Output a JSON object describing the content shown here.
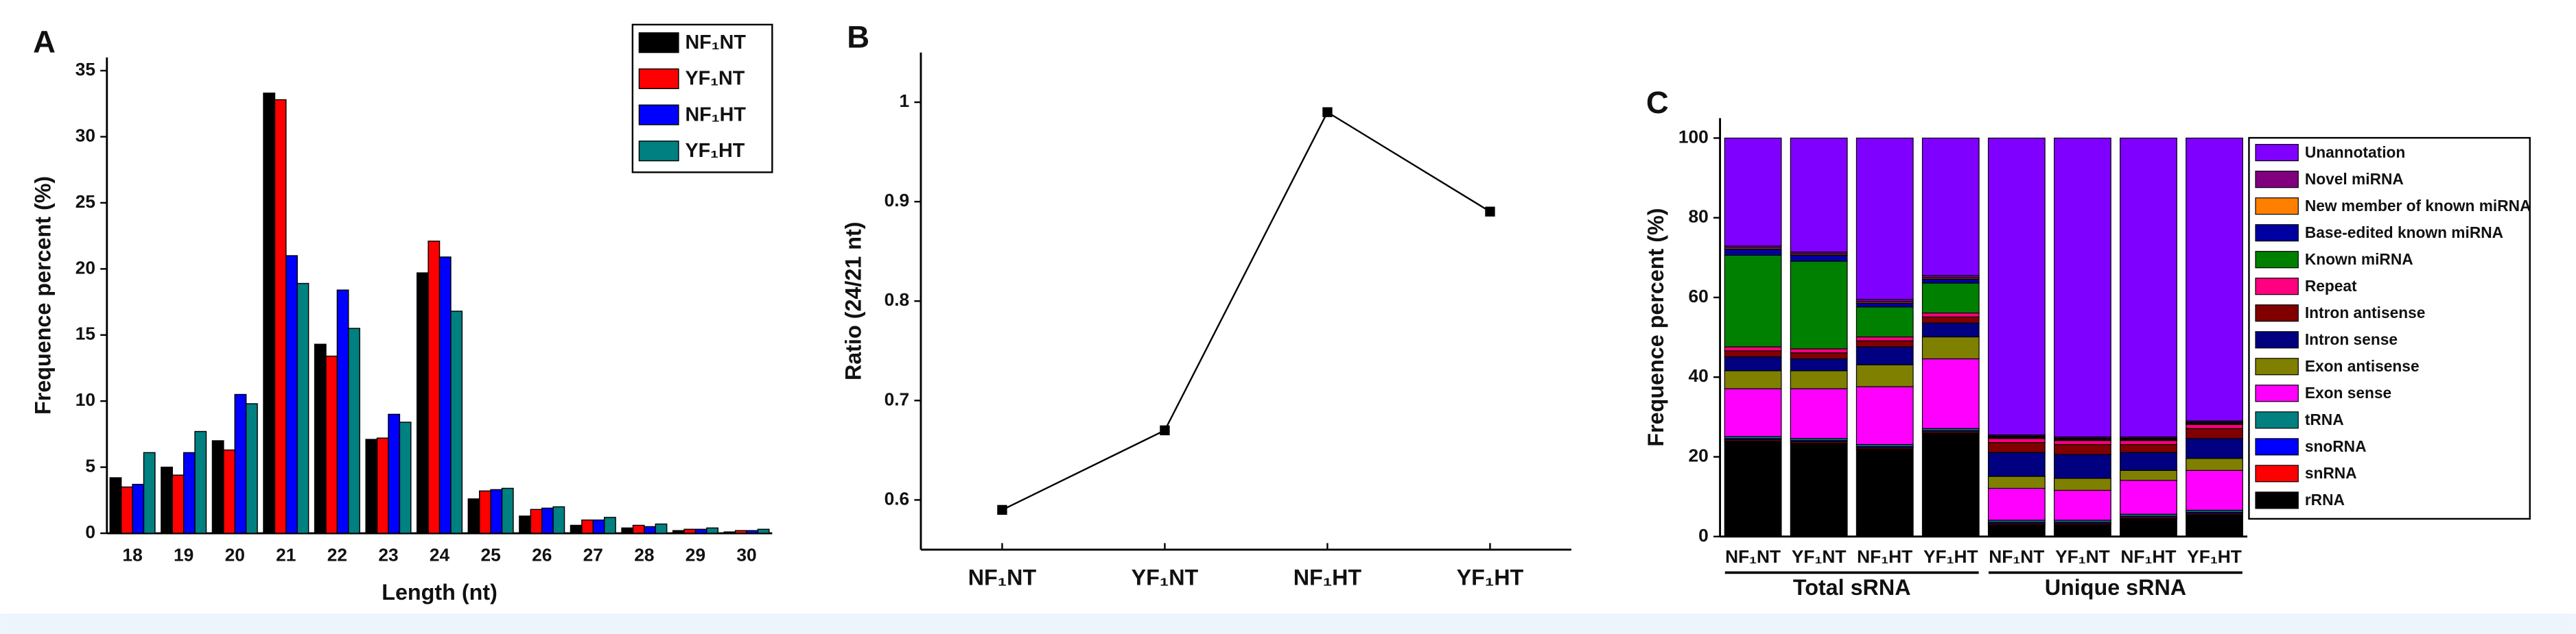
{
  "chart_data": [
    {
      "type": "bar",
      "panel": "A",
      "xlabel": "Length (nt)",
      "ylabel": "Frequence percent (%)",
      "categories": [
        "18",
        "19",
        "20",
        "21",
        "22",
        "23",
        "24",
        "25",
        "26",
        "27",
        "28",
        "29",
        "30"
      ],
      "series": [
        {
          "name": "NF₁NT",
          "color": "#000000",
          "values": [
            4.2,
            5.0,
            7.0,
            33.3,
            14.3,
            7.1,
            19.7,
            2.6,
            1.3,
            0.6,
            0.4,
            0.2,
            0.1
          ]
        },
        {
          "name": "YF₁NT",
          "color": "#ff0000",
          "values": [
            3.5,
            4.4,
            6.3,
            32.8,
            13.4,
            7.2,
            22.1,
            3.2,
            1.8,
            1.0,
            0.6,
            0.3,
            0.2
          ]
        },
        {
          "name": "NF₁HT",
          "color": "#0000ff",
          "values": [
            3.7,
            6.1,
            10.5,
            21.0,
            18.4,
            9.0,
            20.9,
            3.3,
            1.9,
            1.0,
            0.5,
            0.3,
            0.2
          ]
        },
        {
          "name": "YF₁HT",
          "color": "#008080",
          "values": [
            6.1,
            7.7,
            9.8,
            18.9,
            15.5,
            8.4,
            16.8,
            3.4,
            2.0,
            1.2,
            0.7,
            0.4,
            0.3
          ]
        }
      ],
      "ylim": [
        0,
        36
      ],
      "yticks": [
        0,
        5,
        10,
        15,
        20,
        25,
        30,
        35
      ],
      "legend": "upper right"
    },
    {
      "type": "line",
      "panel": "B",
      "ylabel": "Ratio (24/21 nt)",
      "categories": [
        "NF₁NT",
        "YF₁NT",
        "NF₁HT",
        "YF₁HT"
      ],
      "values": [
        0.59,
        0.67,
        0.99,
        0.89
      ],
      "color": "#000000",
      "ylim": [
        0.55,
        1.05
      ],
      "yticks": [
        0.6,
        0.7,
        0.8,
        0.9,
        1.0
      ]
    },
    {
      "type": "stacked_bar",
      "panel": "C",
      "ylabel": "Frequence percent (%)",
      "groups": [
        {
          "name": "Total sRNA",
          "categories": [
            "NF₁NT",
            "YF₁NT",
            "NF₁HT",
            "YF₁HT"
          ]
        },
        {
          "name": "Unique sRNA",
          "categories": [
            "NF₁NT",
            "YF₁NT",
            "NF₁HT",
            "YF₁HT"
          ]
        }
      ],
      "series": [
        {
          "name": "rRNA",
          "color": "#000000",
          "values": [
            24,
            23.5,
            22,
            26,
            3,
            3,
            4.5,
            5.5
          ]
        },
        {
          "name": "snRNA",
          "color": "#ff0000",
          "values": [
            0.3,
            0.3,
            0.3,
            0.3,
            0.3,
            0.3,
            0.3,
            0.3
          ]
        },
        {
          "name": "snoRNA",
          "color": "#0000ff",
          "values": [
            0.3,
            0.3,
            0.3,
            0.3,
            0.3,
            0.3,
            0.3,
            0.3
          ]
        },
        {
          "name": "tRNA",
          "color": "#008080",
          "values": [
            0.5,
            0.5,
            0.5,
            0.5,
            0.5,
            0.5,
            0.5,
            0.5
          ]
        },
        {
          "name": "Exon sense",
          "color": "#ff00ff",
          "values": [
            12,
            12.5,
            14.5,
            17.5,
            8,
            7.5,
            8.5,
            10
          ]
        },
        {
          "name": "Exon antisense",
          "color": "#808000",
          "values": [
            4.5,
            4.5,
            5.5,
            5.5,
            3,
            3,
            2.5,
            3
          ]
        },
        {
          "name": "Intron sense",
          "color": "#000080",
          "values": [
            3.5,
            3,
            4.5,
            3.5,
            6,
            6,
            4.5,
            5
          ]
        },
        {
          "name": "Intron antisense",
          "color": "#800000",
          "values": [
            1.5,
            1.5,
            1.5,
            1.5,
            2.5,
            2.5,
            2,
            2.5
          ]
        },
        {
          "name": "Repeat",
          "color": "#ff0080",
          "values": [
            1,
            1,
            1,
            1,
            1,
            1,
            1,
            1
          ]
        },
        {
          "name": "Known miRNA",
          "color": "#008000",
          "values": [
            23,
            22,
            7.5,
            7.5,
            0.2,
            0.2,
            0.2,
            0.2
          ]
        },
        {
          "name": "Base-edited known miRNA",
          "color": "#0000a0",
          "values": [
            1.5,
            1.5,
            1,
            1,
            0.2,
            0.2,
            0.2,
            0.2
          ]
        },
        {
          "name": "New member of known miRNA",
          "color": "#ff8000",
          "values": [
            0.3,
            0.3,
            0.3,
            0.3,
            0.2,
            0.2,
            0.2,
            0.2
          ]
        },
        {
          "name": "Novel miRNA",
          "color": "#800080",
          "values": [
            0.5,
            0.5,
            0.6,
            0.6,
            0.3,
            0.3,
            0.3,
            0.3
          ]
        },
        {
          "name": "Unannotation",
          "color": "#8000ff",
          "values": [
            27.1,
            28.6,
            40.5,
            34.5,
            74.5,
            75,
            75,
            71
          ]
        }
      ],
      "ylim": [
        0,
        105
      ],
      "yticks": [
        0,
        20,
        40,
        60,
        80,
        100
      ],
      "legend": "right"
    }
  ]
}
